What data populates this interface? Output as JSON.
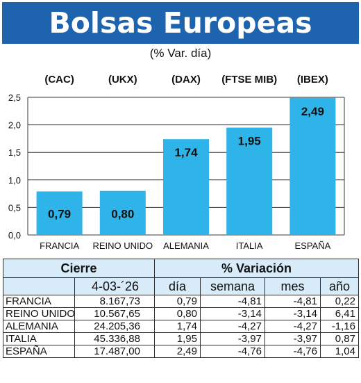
{
  "header": {
    "title": "Bolsas Europeas",
    "subtitle": "(% Var. día)"
  },
  "chart_data": {
    "type": "bar",
    "categories": [
      "FRANCIA",
      "REINO UNIDO",
      "ALEMANIA",
      "ITALIA",
      "ESPAÑA"
    ],
    "index_labels": [
      "(CAC)",
      "(UKX)",
      "(DAX)",
      "(FTSE MIB)",
      "(IBEX)"
    ],
    "values": [
      0.79,
      0.8,
      1.74,
      1.95,
      2.49
    ],
    "value_labels": [
      "0,79",
      "0,80",
      "1,74",
      "1,95",
      "2,49"
    ],
    "ylim": [
      0,
      2.5
    ],
    "yticks": [
      0,
      0.5,
      1.0,
      1.5,
      2.0,
      2.5
    ],
    "ytick_labels": [
      "0,0",
      "0,5",
      "1,0",
      "1,5",
      "2,0",
      "2,5"
    ],
    "grid": true,
    "bar_color": "#2fb4e9"
  },
  "table": {
    "header_cierre": "Cierre",
    "header_variacion": "% Variación",
    "date": "4-03-´26",
    "col_dia": "día",
    "col_semana": "semana",
    "col_mes": "mes",
    "col_anio": "año",
    "rows": [
      {
        "country": "FRANCIA",
        "close": "8.167,73",
        "dia": "0,79",
        "semana": "-4,81",
        "mes": "-4,81",
        "anio": "0,22"
      },
      {
        "country": "REINO UNIDO",
        "close": "10.567,65",
        "dia": "0,80",
        "semana": "-3,14",
        "mes": "-3,14",
        "anio": "6,41"
      },
      {
        "country": "ALEMANIA",
        "close": "24.205,36",
        "dia": "1,74",
        "semana": "-4,27",
        "mes": "-4,27",
        "anio": "-1,16"
      },
      {
        "country": "ITALIA",
        "close": "45.336,88",
        "dia": "1,95",
        "semana": "-3,97",
        "mes": "-3,97",
        "anio": "0,87"
      },
      {
        "country": "ESPAÑA",
        "close": "17.487,00",
        "dia": "2,49",
        "semana": "-4,76",
        "mes": "-4,76",
        "anio": "1,04"
      }
    ]
  }
}
